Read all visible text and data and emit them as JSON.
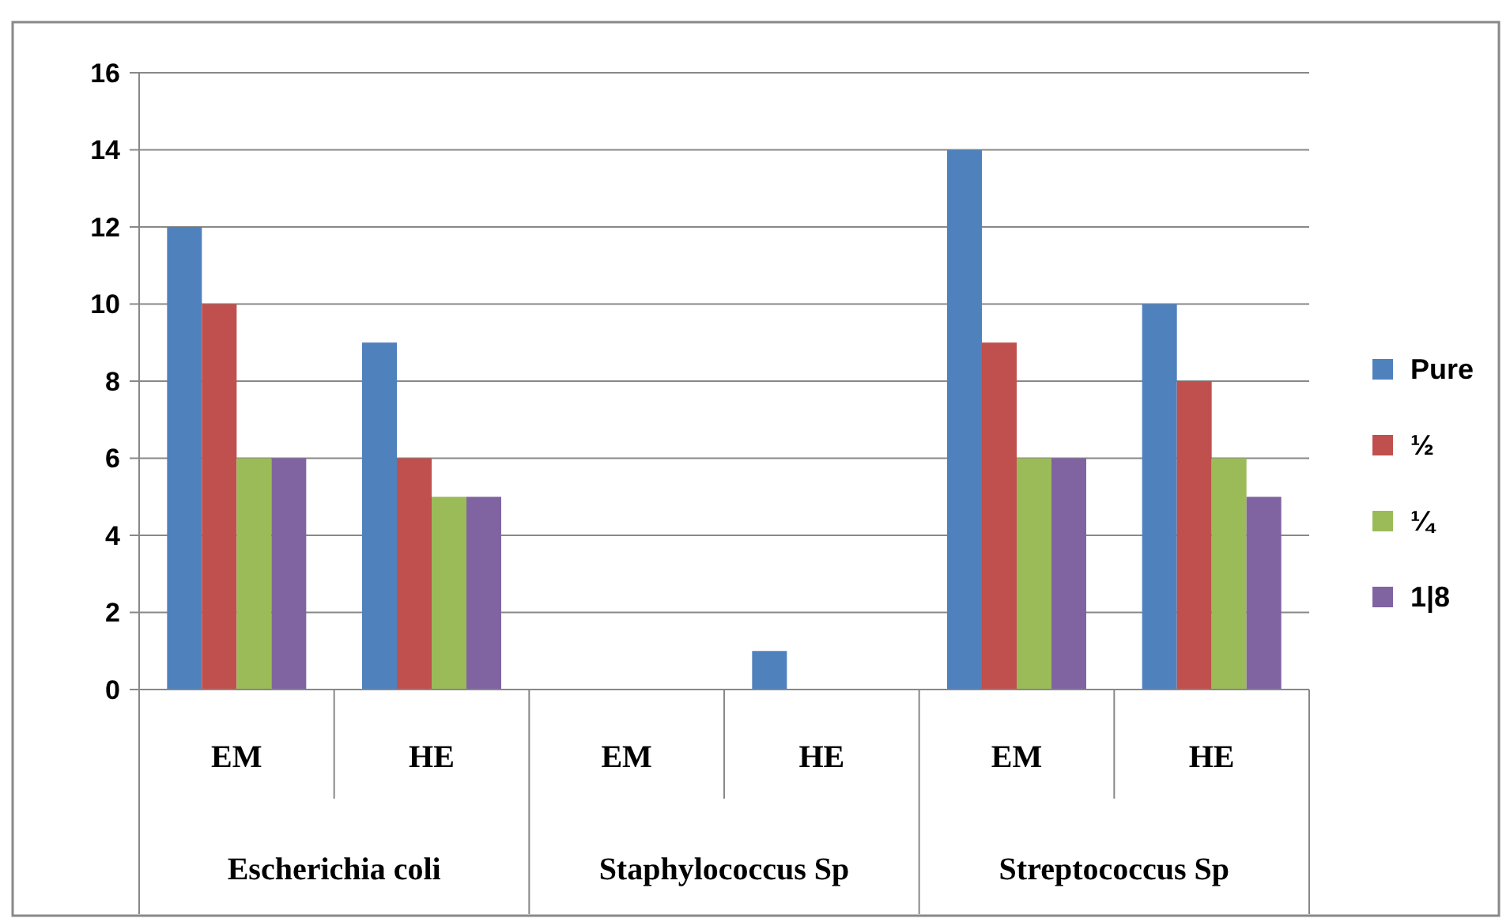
{
  "chart_data": {
    "type": "bar",
    "categories": [
      "EM",
      "HE",
      "EM",
      "HE",
      "EM",
      "HE"
    ],
    "annotations": [
      "Escherichia coli",
      "Staphylococcus Sp",
      "Streptococcus Sp"
    ],
    "series": [
      {
        "name": "Pure",
        "color": "#4f81bd",
        "values": [
          12,
          9,
          0,
          1,
          14,
          10
        ]
      },
      {
        "name": "½",
        "color": "#c0504d",
        "values": [
          10,
          6,
          0,
          0,
          9,
          8
        ]
      },
      {
        "name": "¼",
        "color": "#9bbb59",
        "values": [
          6,
          5,
          0,
          0,
          6,
          6
        ]
      },
      {
        "name": "1|8",
        "color": "#8064a2",
        "values": [
          6,
          5,
          0,
          0,
          6,
          5
        ]
      }
    ],
    "ylim": [
      0,
      16
    ],
    "yticks": [
      0,
      2,
      4,
      6,
      8,
      10,
      12,
      14,
      16
    ],
    "grid": "y",
    "legend": "right"
  }
}
